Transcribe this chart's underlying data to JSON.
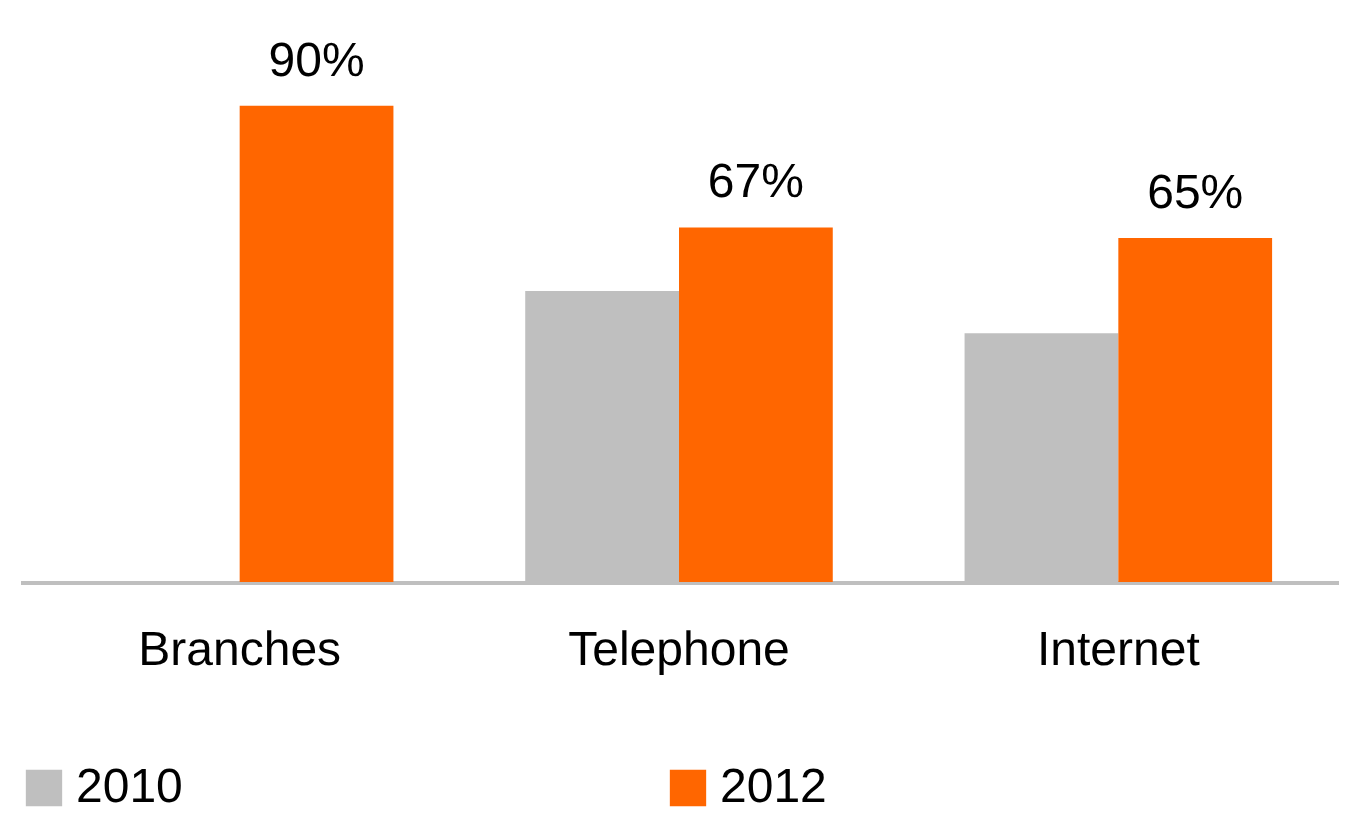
{
  "chart_data": {
    "type": "bar",
    "categories": [
      "Branches",
      "Telephone",
      "Internet"
    ],
    "series": [
      {
        "name": "2010",
        "color": "#bfbfbf",
        "values": [
          null,
          55,
          47
        ]
      },
      {
        "name": "2012",
        "color": "#ff6600",
        "values": [
          90,
          67,
          65
        ],
        "value_labels": [
          "90%",
          "67%",
          "65%"
        ]
      }
    ],
    "legend": "bottom",
    "grid": false
  }
}
